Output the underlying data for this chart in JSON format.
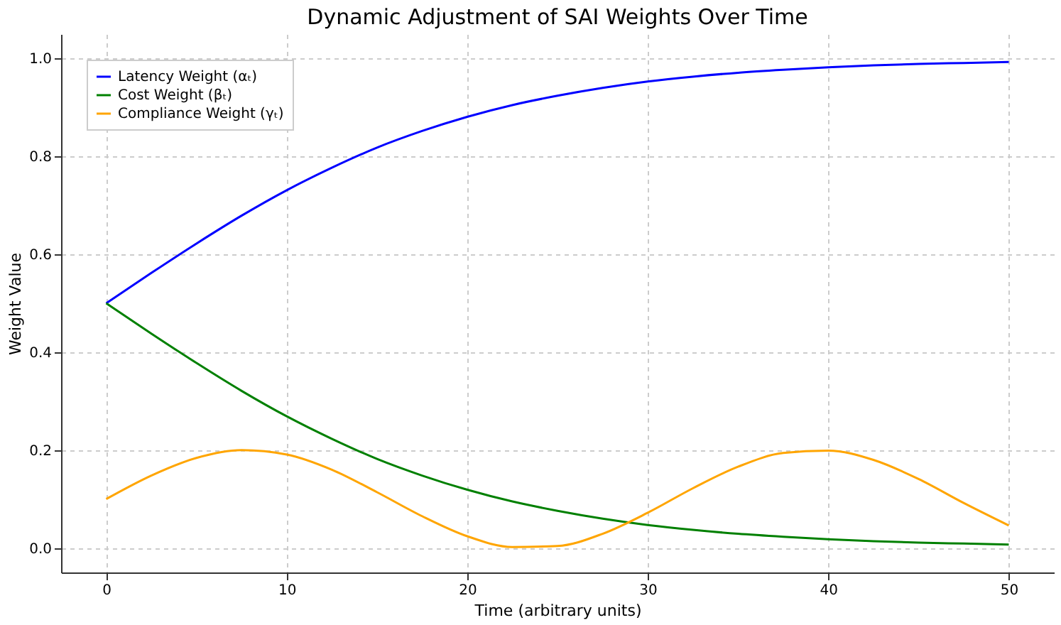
{
  "chart_data": {
    "type": "line",
    "title": "Dynamic Adjustment of SAI Weights Over Time",
    "xlabel": "Time (arbitrary units)",
    "ylabel": "Weight Value",
    "x": [
      0,
      2.5,
      5,
      7.5,
      10,
      12.5,
      15,
      17.5,
      20,
      22.5,
      25,
      27.5,
      30,
      32.5,
      35,
      37.5,
      40,
      42.5,
      45,
      47.5,
      50
    ],
    "series": [
      {
        "name": "Latency Weight (αₜ)",
        "color": "#0000ff",
        "values": [
          0.5,
          0.562,
          0.622,
          0.679,
          0.731,
          0.777,
          0.818,
          0.852,
          0.881,
          0.905,
          0.924,
          0.94,
          0.953,
          0.963,
          0.971,
          0.977,
          0.982,
          0.986,
          0.989,
          0.991,
          0.993
        ]
      },
      {
        "name": "Cost Weight (βₜ)",
        "color": "#008000",
        "values": [
          0.5,
          0.438,
          0.378,
          0.321,
          0.269,
          0.223,
          0.182,
          0.148,
          0.119,
          0.095,
          0.076,
          0.06,
          0.047,
          0.037,
          0.029,
          0.023,
          0.018,
          0.014,
          0.011,
          0.009,
          0.007
        ]
      },
      {
        "name": "Compliance Weight (γₜ)",
        "color": "#ffa500",
        "values": [
          0.1,
          0.148,
          0.184,
          0.2,
          0.191,
          0.16,
          0.114,
          0.065,
          0.024,
          0.002,
          0.004,
          0.029,
          0.072,
          0.122,
          0.166,
          0.194,
          0.199,
          0.18,
          0.141,
          0.092,
          0.046
        ]
      }
    ],
    "xlim": [
      -2.5,
      52.5
    ],
    "xticks": [
      0,
      10,
      20,
      30,
      40,
      50
    ],
    "ylim": [
      -0.05,
      1.05
    ],
    "yticks": [
      {
        "value": 0,
        "label": "0.0"
      },
      0.2,
      0.4,
      0.6,
      0.8,
      {
        "value": 1,
        "label": "1.0"
      }
    ],
    "grid": true,
    "legend": "top left",
    "marker": "none",
    "line_style": "solid"
  }
}
